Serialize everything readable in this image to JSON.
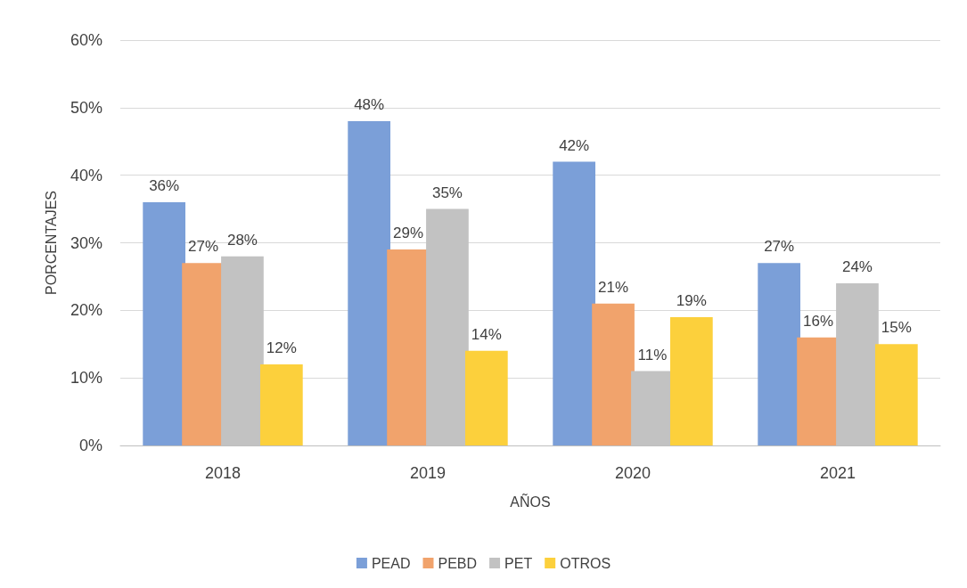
{
  "chart_data": {
    "type": "bar",
    "xlabel": "AÑOS",
    "ylabel": "PORCENTAJES",
    "categories": [
      "2018",
      "2019",
      "2020",
      "2021"
    ],
    "series": [
      {
        "name": "PEAD",
        "color": "#7b9fd8",
        "values": [
          36,
          48,
          42,
          27
        ],
        "value_labels": [
          "36%",
          "48%",
          "42%",
          "27%"
        ]
      },
      {
        "name": "PEBD",
        "color": "#f1a36c",
        "values": [
          27,
          29,
          21,
          16
        ],
        "value_labels": [
          "27%",
          "29%",
          "21%",
          "16%"
        ]
      },
      {
        "name": "PET",
        "color": "#c2c2c2",
        "values": [
          28,
          35,
          11,
          24
        ],
        "value_labels": [
          "28%",
          "35%",
          "11%",
          "24%"
        ]
      },
      {
        "name": "OTROS",
        "color": "#fcd03c",
        "values": [
          12,
          14,
          19,
          15
        ],
        "value_labels": [
          "12%",
          "14%",
          "19%",
          "15%"
        ]
      }
    ],
    "ylim": [
      0,
      60
    ],
    "yticks": [
      {
        "value": 0,
        "label": "0%"
      },
      {
        "value": 10,
        "label": "10%"
      },
      {
        "value": 20,
        "label": "20%"
      },
      {
        "value": 30,
        "label": "30%"
      },
      {
        "value": 40,
        "label": "40%"
      },
      {
        "value": 50,
        "label": "50%"
      },
      {
        "value": 60,
        "label": "60%"
      }
    ],
    "grid": "y",
    "legend": "bottom"
  }
}
